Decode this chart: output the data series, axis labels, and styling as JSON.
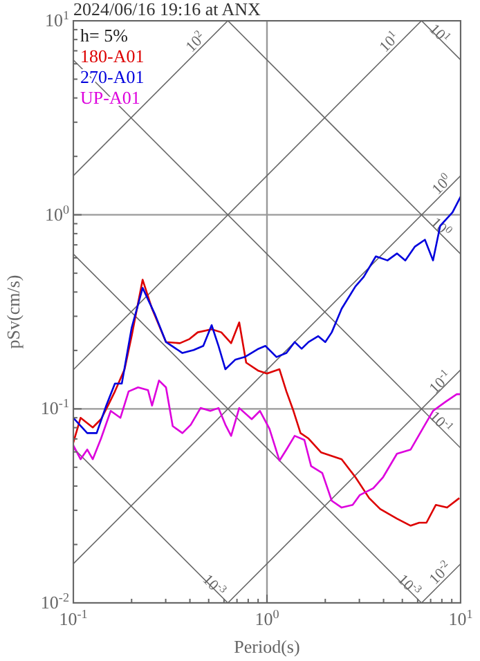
{
  "chart_data": {
    "type": "line",
    "title": "2024/06/16 19:16 at ANX",
    "xlabel": "Period(s)",
    "ylabel": "pSv(cm/s)",
    "log": "xy",
    "grid": true,
    "legend": "top left",
    "xlim": [
      0.1,
      10
    ],
    "ylim": [
      0.01,
      10
    ],
    "xticks": [
      {
        "value": 0.1,
        "label": "10$^{-1}$"
      },
      {
        "value": 0.2,
        "label": null
      },
      {
        "value": 0.3,
        "label": null
      },
      {
        "value": 0.4,
        "label": null
      },
      {
        "value": 0.5,
        "label": null
      },
      {
        "value": 0.6,
        "label": null
      },
      {
        "value": 0.7,
        "label": null
      },
      {
        "value": 0.8,
        "label": null
      },
      {
        "value": 0.9,
        "label": null
      },
      {
        "value": 1,
        "label": "10$^{0}$"
      },
      {
        "value": 2,
        "label": null
      },
      {
        "value": 3,
        "label": null
      },
      {
        "value": 4,
        "label": null
      },
      {
        "value": 5,
        "label": null
      },
      {
        "value": 6,
        "label": null
      },
      {
        "value": 7,
        "label": null
      },
      {
        "value": 8,
        "label": null
      },
      {
        "value": 9,
        "label": null
      },
      {
        "value": 10,
        "label": "10$^{1}$"
      }
    ],
    "yticks": [
      {
        "value": 0.01,
        "label": "10$^{-2}$"
      },
      {
        "value": 0.02,
        "label": null
      },
      {
        "value": 0.03,
        "label": null
      },
      {
        "value": 0.04,
        "label": null
      },
      {
        "value": 0.05,
        "label": null
      },
      {
        "value": 0.06,
        "label": null
      },
      {
        "value": 0.07,
        "label": null
      },
      {
        "value": 0.08,
        "label": null
      },
      {
        "value": 0.09,
        "label": null
      },
      {
        "value": 0.1,
        "label": "10$^{-1}$"
      },
      {
        "value": 0.2,
        "label": null
      },
      {
        "value": 0.3,
        "label": null
      },
      {
        "value": 0.4,
        "label": null
      },
      {
        "value": 0.5,
        "label": null
      },
      {
        "value": 0.6,
        "label": null
      },
      {
        "value": 0.7,
        "label": null
      },
      {
        "value": 0.8,
        "label": null
      },
      {
        "value": 0.9,
        "label": null
      },
      {
        "value": 1,
        "label": "10$^{0}$"
      },
      {
        "value": 2,
        "label": null
      },
      {
        "value": 3,
        "label": null
      },
      {
        "value": 4,
        "label": null
      },
      {
        "value": 5,
        "label": null
      },
      {
        "value": 6,
        "label": null
      },
      {
        "value": 7,
        "label": null
      },
      {
        "value": 8,
        "label": null
      },
      {
        "value": 9,
        "label": null
      },
      {
        "value": 10,
        "label": "10$^{1}$"
      }
    ],
    "annotations": [
      "h= 5%",
      "10$^{2}$",
      "10$^{1}$",
      "10$^{0}$",
      "10$^{-1}$",
      "10$^{-2}$",
      "10$^{1}$",
      "10$^{0}$",
      "10$^{-1}$",
      "10$^{-3}$",
      "10$^{-3}$"
    ],
    "series": [
      {
        "color": "#666666",
        "x": [
          6.28,
          10
        ],
        "values": [
          0.01,
          0.0159
        ]
      },
      {
        "color": "#666666",
        "x": [
          0.628,
          10
        ],
        "values": [
          0.01,
          0.159
        ]
      },
      {
        "color": "#666666",
        "x": [
          0.1,
          10
        ],
        "values": [
          0.0159,
          1.59
        ]
      },
      {
        "color": "#666666",
        "x": [
          0.1,
          6.28
        ],
        "values": [
          0.159,
          10
        ]
      },
      {
        "color": "#666666",
        "x": [
          0.1,
          0.628
        ],
        "values": [
          1.59,
          10
        ]
      },
      {
        "color": "#666666",
        "x": [
          0.1,
          0.628
        ],
        "values": [
          0.0628,
          0.01
        ]
      },
      {
        "color": "#666666",
        "x": [
          0.1,
          6.28
        ],
        "values": [
          0.628,
          0.01
        ]
      },
      {
        "color": "#666666",
        "x": [
          0.1,
          10
        ],
        "values": [
          6.28,
          0.0628
        ]
      },
      {
        "color": "#666666",
        "x": [
          0.628,
          10
        ],
        "values": [
          10,
          0.628
        ]
      },
      {
        "color": "#666666",
        "x": [
          6.28,
          10
        ],
        "values": [
          10,
          6.28
        ]
      },
      {
        "name": "180-A01",
        "color": "#dd0000",
        "x": [
          0.1,
          0.109,
          0.126,
          0.139,
          0.151,
          0.164,
          0.184,
          0.2,
          0.228,
          0.255,
          0.301,
          0.355,
          0.398,
          0.439,
          0.518,
          0.581,
          0.653,
          0.719,
          0.781,
          0.904,
          1.0,
          1.16,
          1.26,
          1.37,
          1.49,
          1.64,
          1.9,
          2.43,
          2.86,
          3.37,
          3.84,
          4.69,
          5.52,
          6.11,
          6.66,
          7.45,
          8.51,
          9.85
        ],
        "values": [
          0.067,
          0.0899,
          0.0802,
          0.0885,
          0.104,
          0.123,
          0.16,
          0.237,
          0.463,
          0.328,
          0.221,
          0.218,
          0.229,
          0.248,
          0.257,
          0.248,
          0.218,
          0.279,
          0.173,
          0.157,
          0.152,
          0.16,
          0.123,
          0.0976,
          0.075,
          0.0703,
          0.0597,
          0.055,
          0.0445,
          0.0347,
          0.0305,
          0.0272,
          0.025,
          0.0259,
          0.0259,
          0.032,
          0.031,
          0.0347
        ]
      },
      {
        "name": "270-A01",
        "color": "#0000dd",
        "x": [
          0.1,
          0.118,
          0.132,
          0.148,
          0.164,
          0.178,
          0.2,
          0.228,
          0.264,
          0.301,
          0.366,
          0.418,
          0.469,
          0.518,
          0.562,
          0.61,
          0.685,
          0.768,
          0.904,
          0.982,
          1.12,
          1.26,
          1.39,
          1.51,
          1.64,
          1.84,
          2.0,
          2.16,
          2.43,
          2.86,
          3.16,
          3.65,
          4.19,
          4.69,
          5.18,
          5.81,
          6.54,
          7.2,
          7.84,
          9.08,
          10
        ],
        "values": [
          0.0899,
          0.075,
          0.075,
          0.104,
          0.135,
          0.135,
          0.261,
          0.42,
          0.307,
          0.221,
          0.194,
          0.201,
          0.211,
          0.27,
          0.211,
          0.16,
          0.179,
          0.185,
          0.204,
          0.211,
          0.185,
          0.194,
          0.221,
          0.204,
          0.221,
          0.237,
          0.221,
          0.248,
          0.328,
          0.427,
          0.479,
          0.611,
          0.582,
          0.632,
          0.582,
          0.686,
          0.744,
          0.582,
          0.877,
          1.03,
          1.24
        ]
      },
      {
        "name": "UP-A01",
        "color": "#dd00dd",
        "x": [
          0.1,
          0.109,
          0.118,
          0.126,
          0.139,
          0.156,
          0.175,
          0.193,
          0.216,
          0.243,
          0.255,
          0.277,
          0.301,
          0.326,
          0.366,
          0.404,
          0.454,
          0.51,
          0.562,
          0.61,
          0.653,
          0.719,
          0.834,
          0.92,
          1.03,
          1.16,
          1.26,
          1.39,
          1.56,
          1.69,
          1.93,
          2.16,
          2.43,
          2.77,
          3.01,
          3.54,
          3.98,
          4.69,
          5.52,
          6.54,
          7.2,
          8.38,
          9.55,
          10
        ],
        "values": [
          0.0648,
          0.055,
          0.0617,
          0.055,
          0.0703,
          0.0976,
          0.0899,
          0.123,
          0.129,
          0.125,
          0.104,
          0.14,
          0.129,
          0.0815,
          0.075,
          0.0828,
          0.101,
          0.0976,
          0.101,
          0.0828,
          0.0726,
          0.101,
          0.0885,
          0.0976,
          0.0789,
          0.0541,
          0.0617,
          0.0726,
          0.0692,
          0.0507,
          0.0467,
          0.0336,
          0.031,
          0.032,
          0.0359,
          0.039,
          0.0445,
          0.0587,
          0.0617,
          0.0828,
          0.0976,
          0.109,
          0.119,
          0.119
        ]
      }
    ]
  }
}
